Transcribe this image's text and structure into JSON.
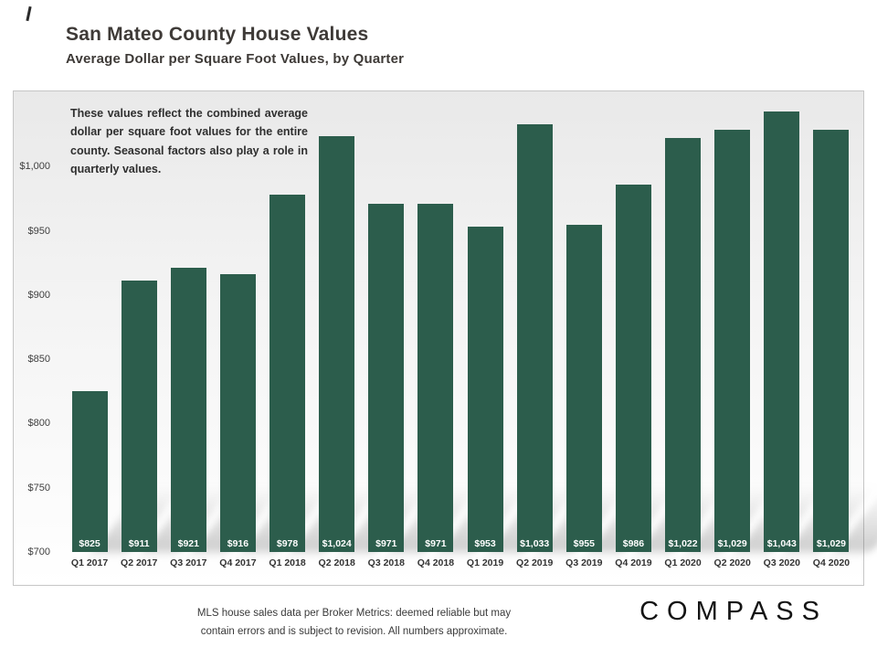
{
  "header": {
    "title": "San Mateo County House Values",
    "subtitle": "Average Dollar per Square Foot Values, by Quarter"
  },
  "annotation": "These values reflect the combined average dollar per square foot values for the entire county. Seasonal factors also play a role in quarterly values.",
  "footer": {
    "disclaimer_line1": "MLS house sales data per Broker Metrics:  deemed reliable but may",
    "disclaimer_line2": "contain errors and is subject to revision. All numbers approximate.",
    "logo_text": "COMPASS"
  },
  "chart_data": {
    "type": "bar",
    "title": "San Mateo County House Values",
    "subtitle": "Average Dollar per Square Foot Values, by Quarter",
    "categories": [
      "Q1 2017",
      "Q2 2017",
      "Q3 2017",
      "Q4 2017",
      "Q1 2018",
      "Q2 2018",
      "Q3 2018",
      "Q4 2018",
      "Q1 2019",
      "Q2 2019",
      "Q3 2019",
      "Q4 2019",
      "Q1 2020",
      "Q2 2020",
      "Q3 2020",
      "Q4 2020"
    ],
    "values": [
      825,
      911,
      921,
      916,
      978,
      1024,
      971,
      971,
      953,
      1033,
      955,
      986,
      1022,
      1029,
      1043,
      1029
    ],
    "value_labels": [
      "$825",
      "$911",
      "$921",
      "$916",
      "$978",
      "$1,024",
      "$971",
      "$971",
      "$953",
      "$1,033",
      "$955",
      "$986",
      "$1,022",
      "$1,029",
      "$1,043",
      "$1,029"
    ],
    "xlabel": "",
    "ylabel": "",
    "ylim": [
      700,
      1050
    ],
    "yticks": [
      700,
      750,
      800,
      850,
      900,
      950,
      1000
    ],
    "ytick_labels": [
      "$700",
      "$750",
      "$800",
      "$850",
      "$900",
      "$950",
      "$1,000"
    ],
    "bar_color": "#2c5d4c",
    "grid": false,
    "legend": false
  }
}
